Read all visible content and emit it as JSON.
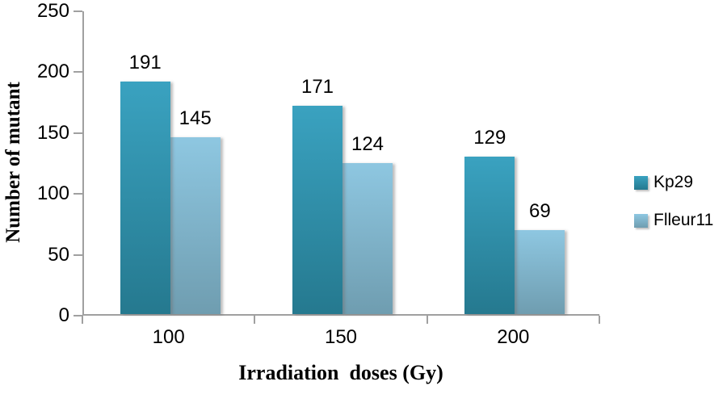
{
  "chart_data": {
    "type": "bar",
    "categories": [
      "100",
      "150",
      "200"
    ],
    "series": [
      {
        "name": "Kp29",
        "values": [
          191,
          171,
          129
        ],
        "color_top": "#3aa2c0",
        "color_bottom": "#25798f"
      },
      {
        "name": "Flleur11",
        "values": [
          145,
          124,
          69
        ],
        "color_top": "#8ec7e1",
        "color_bottom": "#6f9db0"
      }
    ],
    "title": "",
    "xlabel": "Irradiation  doses (Gy)",
    "ylabel": "Number of mutant",
    "ylim": [
      0,
      250
    ],
    "yticks": [
      0,
      50,
      100,
      150,
      200,
      250
    ],
    "grid": false,
    "legend_position": "right",
    "data_labels": true,
    "axis_color": "#a0a0a0",
    "text_color": "#000000",
    "background_color": "#ffffff"
  }
}
